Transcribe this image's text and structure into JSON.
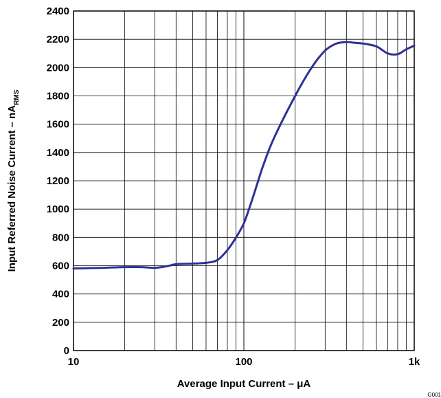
{
  "chart_data": {
    "type": "line",
    "xscale": "log",
    "xlim": [
      10,
      1000
    ],
    "ylim": [
      0,
      2400
    ],
    "grid": true,
    "xlabel": "Average Input Current – μA",
    "ylabel_main": "Input Referred Noise Current – nA",
    "ylabel_sub": "RMS",
    "x_ticks": [
      10,
      100,
      1000
    ],
    "x_tick_labels": [
      "10",
      "100",
      "1k"
    ],
    "y_ticks": [
      0,
      200,
      400,
      600,
      800,
      1000,
      1200,
      1400,
      1600,
      1800,
      2000,
      2200,
      2400
    ],
    "y_tick_labels": [
      "0",
      "200",
      "400",
      "600",
      "800",
      "1000",
      "1200",
      "1400",
      "1600",
      "1800",
      "2000",
      "2200",
      "2400"
    ],
    "series": [
      {
        "color": "#2e3192",
        "x": [
          10,
          15,
          20,
          25,
          30,
          35,
          40,
          50,
          60,
          70,
          80,
          90,
          100,
          110,
          120,
          130,
          150,
          200,
          250,
          300,
          350,
          400,
          450,
          500,
          600,
          700,
          800,
          900,
          1000
        ],
        "y": [
          580,
          585,
          590,
          590,
          585,
          595,
          610,
          615,
          620,
          640,
          710,
          800,
          900,
          1040,
          1180,
          1310,
          1500,
          1800,
          2000,
          2120,
          2170,
          2180,
          2175,
          2170,
          2150,
          2100,
          2095,
          2130,
          2155
        ]
      }
    ]
  },
  "figure_id": "G001"
}
